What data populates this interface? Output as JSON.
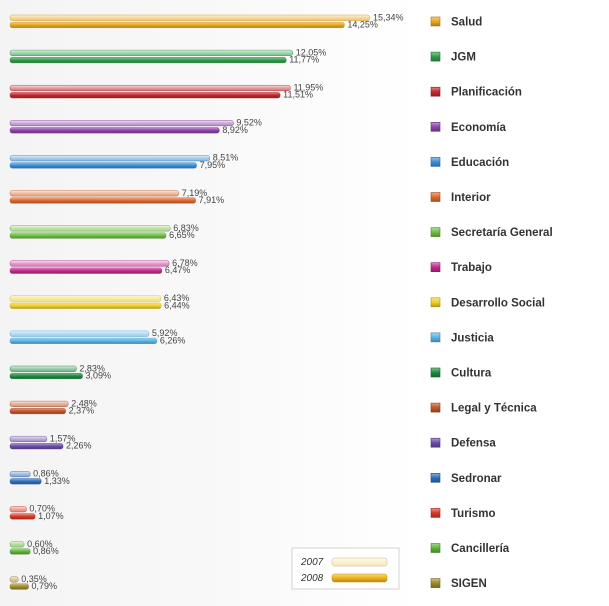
{
  "chart_data": {
    "type": "bar",
    "orientation": "horizontal",
    "categories": [
      "Salud",
      "JGM",
      "Planificación",
      "Economía",
      "Educación",
      "Interior",
      "Secretaría General",
      "Trabajo",
      "Desarrollo Social",
      "Justicia",
      "Cultura",
      "Legal y Técnica",
      "Defensa",
      "Sedronar",
      "Turismo",
      "Cancillería",
      "SIGEN"
    ],
    "category_colors": [
      "#e8a820",
      "#2e9e4a",
      "#c0282e",
      "#8e44ad",
      "#3b8fd6",
      "#e0672c",
      "#6cbf40",
      "#c2288e",
      "#f0cf28",
      "#58b4e8",
      "#1e8a3e",
      "#c0562a",
      "#6a4ca6",
      "#2f6fba",
      "#d83828",
      "#5eb438",
      "#a08a2a"
    ],
    "series": [
      {
        "name": "2007",
        "values": [
          15.34,
          12.05,
          11.95,
          9.52,
          8.51,
          7.19,
          6.83,
          6.78,
          6.43,
          5.92,
          2.83,
          2.48,
          1.57,
          0.86,
          0.7,
          0.6,
          0.35
        ],
        "labels": [
          "15,34%",
          "12,05%",
          "11,95%",
          "9,52%",
          "8,51%",
          "7,19%",
          "6,83%",
          "6,78%",
          "6,43%",
          "5,92%",
          "2,83%",
          "2,48%",
          "1,57%",
          "0,86%",
          "0,70%",
          "0,60%",
          "0,35%"
        ]
      },
      {
        "name": "2008",
        "values": [
          14.25,
          11.77,
          11.51,
          8.92,
          7.95,
          7.91,
          6.65,
          6.47,
          6.44,
          6.26,
          3.09,
          2.37,
          2.26,
          1.33,
          1.07,
          0.86,
          0.79
        ],
        "labels": [
          "14,25%",
          "11,77%",
          "11,51%",
          "8,92%",
          "7,95%",
          "7,91%",
          "6,65%",
          "6,47%",
          "6,44%",
          "6,26%",
          "3,09%",
          "2,37%",
          "2,26%",
          "1,33%",
          "1,07%",
          "0,86%",
          "0,79%"
        ]
      }
    ],
    "legend": {
      "placement": "bottom-right",
      "entries": [
        {
          "label": "2007",
          "color": "#f7e29a"
        },
        {
          "label": "2008",
          "color": "#f0b418"
        }
      ]
    },
    "xlim": [
      0,
      15.34
    ],
    "grid": false
  }
}
